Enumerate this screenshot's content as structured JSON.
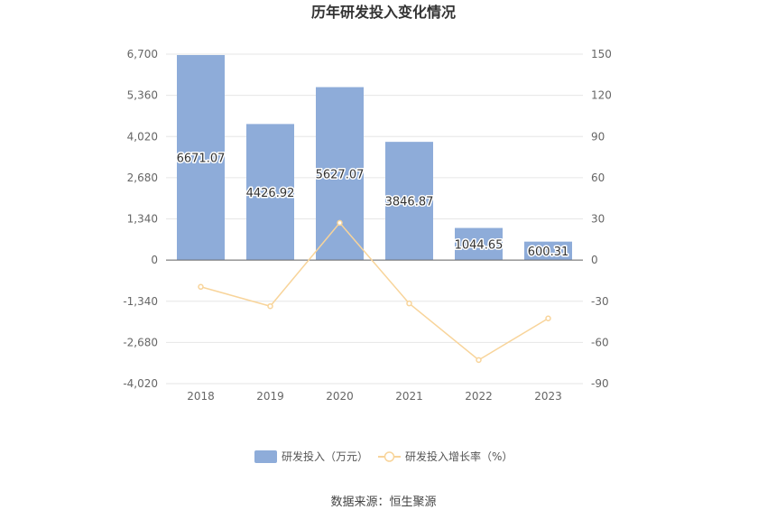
{
  "title": "历年研发投入变化情况",
  "source": "数据来源：恒生聚源",
  "chart_data": {
    "type": "bar",
    "title": "历年研发投入变化情况",
    "categories": [
      "2018",
      "2019",
      "2020",
      "2021",
      "2022",
      "2023"
    ],
    "series": [
      {
        "name": "研发投入（万元）",
        "type": "bar",
        "axis": "left",
        "color": "#8eacd9",
        "values": [
          6671.07,
          4426.92,
          5627.07,
          3846.87,
          1044.65,
          600.31
        ],
        "labels": [
          "6671.07",
          "4426.92",
          "5627.07",
          "3846.87",
          "1044.65",
          "600.31"
        ]
      },
      {
        "name": "研发投入增长率（%）",
        "type": "line",
        "axis": "right",
        "color": "#f8d49a",
        "values": [
          -19.5,
          -33.6,
          27.1,
          -31.6,
          -72.8,
          -42.5
        ]
      }
    ],
    "y_left": {
      "min": -4020,
      "max": 6700,
      "ticks": [
        6700,
        5360,
        4020,
        2680,
        1340,
        0,
        -1340,
        -2680,
        -4020
      ],
      "tick_labels": [
        "6,700",
        "5,360",
        "4,020",
        "2,680",
        "1,340",
        "0",
        "-1,340",
        "-2,680",
        "-4,020"
      ]
    },
    "y_right": {
      "min": -90,
      "max": 150,
      "ticks": [
        150,
        120,
        90,
        60,
        30,
        0,
        -30,
        -60,
        -90
      ],
      "tick_labels": [
        "150",
        "120",
        "90",
        "60",
        "30",
        "0",
        "-30",
        "-60",
        "-90"
      ]
    },
    "grid": true,
    "legend_position": "bottom"
  }
}
